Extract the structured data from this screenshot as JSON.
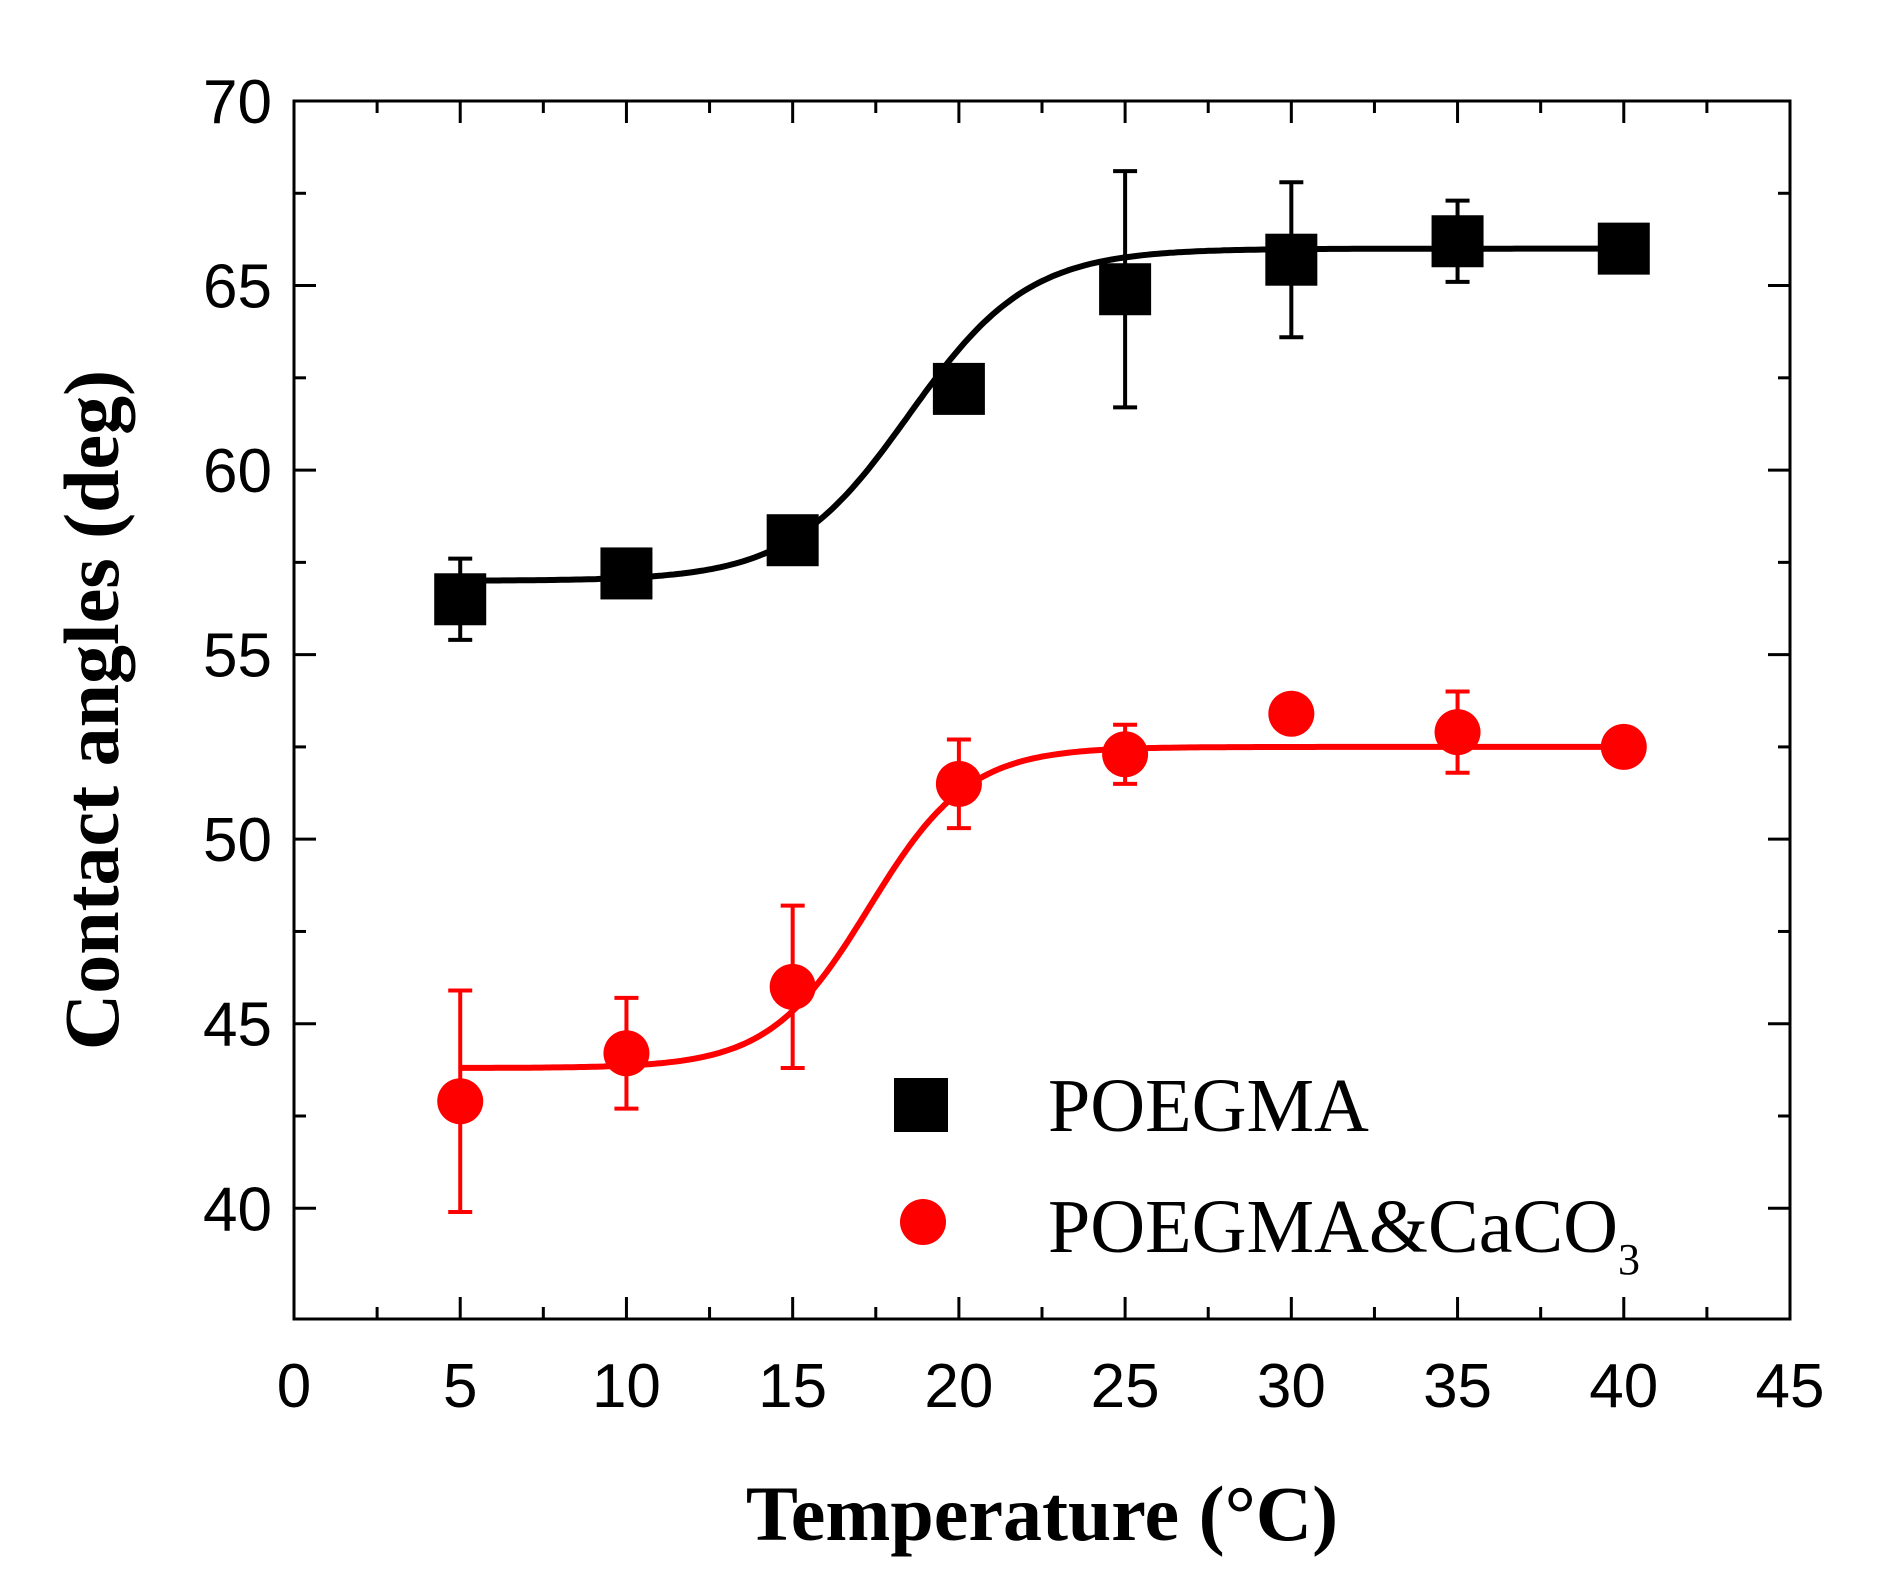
{
  "chart_data": {
    "type": "scatter",
    "xlabel": "Temperature (°C)",
    "ylabel": "Contact angles (deg)",
    "xlim": [
      0,
      45
    ],
    "ylim": [
      37,
      70
    ],
    "x_ticks": [
      0,
      5,
      10,
      15,
      20,
      25,
      30,
      35,
      40,
      45
    ],
    "y_ticks": [
      40,
      45,
      50,
      55,
      60,
      65,
      70
    ],
    "legend_position": "bottom-right",
    "grid": false,
    "series": [
      {
        "name": "POEGMA",
        "marker": "square",
        "color": "#000000",
        "x": [
          5,
          10,
          15,
          20,
          25,
          30,
          35,
          40
        ],
        "y": [
          56.5,
          57.2,
          58.1,
          62.2,
          64.9,
          65.7,
          66.2,
          66.0
        ],
        "err": [
          1.1,
          0.3,
          0.3,
          0.3,
          3.2,
          2.1,
          1.1,
          0.3
        ],
        "fit": {
          "A1": 57.0,
          "A2": 66.0,
          "x0": 18.5,
          "dx": 1.8
        }
      },
      {
        "name_main": "POEGMA&CaCO",
        "name_sub": "3",
        "marker": "circle",
        "color": "#ff0000",
        "x": [
          5,
          10,
          15,
          20,
          25,
          30,
          35,
          40
        ],
        "y": [
          42.9,
          44.2,
          46.0,
          51.5,
          52.3,
          53.4,
          52.9,
          52.5
        ],
        "err": [
          3.0,
          1.5,
          2.2,
          1.2,
          0.8,
          0.4,
          1.1,
          0.3
        ],
        "fit": {
          "A1": 43.8,
          "A2": 52.5,
          "x0": 17.3,
          "dx": 1.5
        }
      }
    ]
  }
}
